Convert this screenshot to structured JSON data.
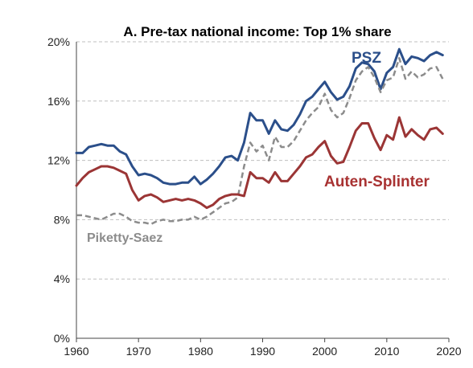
{
  "chart_data": {
    "type": "line",
    "title": "A. Pre-tax national income: Top 1% share",
    "xlabel": "",
    "ylabel": "",
    "xlim": [
      1960,
      2020
    ],
    "ylim": [
      0,
      20
    ],
    "x_ticks": [
      "1960",
      "1970",
      "1980",
      "1990",
      "2000",
      "2010",
      "2020"
    ],
    "y_ticks": [
      "0%",
      "4%",
      "8%",
      "12%",
      "16%",
      "20%"
    ],
    "grid": true,
    "series": [
      {
        "name": "PSZ",
        "color": "#2b4f8a",
        "dash": "solid",
        "label_color": "#2b4f8a",
        "x": [
          1960,
          1961,
          1962,
          1963,
          1964,
          1965,
          1966,
          1967,
          1968,
          1969,
          1970,
          1971,
          1972,
          1973,
          1974,
          1975,
          1976,
          1977,
          1978,
          1979,
          1980,
          1981,
          1982,
          1983,
          1984,
          1985,
          1986,
          1987,
          1988,
          1989,
          1990,
          1991,
          1992,
          1993,
          1994,
          1995,
          1996,
          1997,
          1998,
          1999,
          2000,
          2001,
          2002,
          2003,
          2004,
          2005,
          2006,
          2007,
          2008,
          2009,
          2010,
          2011,
          2012,
          2013,
          2014,
          2015,
          2016,
          2017,
          2018,
          2019
        ],
        "y": [
          12.5,
          12.5,
          12.9,
          13.0,
          13.1,
          13.0,
          13.0,
          12.6,
          12.4,
          11.6,
          11.0,
          11.1,
          11.0,
          10.8,
          10.5,
          10.4,
          10.4,
          10.5,
          10.5,
          10.9,
          10.4,
          10.7,
          11.1,
          11.6,
          12.2,
          12.3,
          12.0,
          13.2,
          15.2,
          14.7,
          14.7,
          13.8,
          14.7,
          14.1,
          14.0,
          14.4,
          15.1,
          16.0,
          16.3,
          16.8,
          17.3,
          16.6,
          16.1,
          16.3,
          17.0,
          18.2,
          18.6,
          18.5,
          18.0,
          16.8,
          17.9,
          18.3,
          19.5,
          18.5,
          19.0,
          18.9,
          18.7,
          19.1,
          19.3,
          19.1
        ]
      },
      {
        "name": "Piketty-Saez",
        "color": "#8c8c8c",
        "dash": "dashed",
        "label_color": "#8c8c8c",
        "x": [
          1960,
          1961,
          1962,
          1963,
          1964,
          1965,
          1966,
          1967,
          1968,
          1969,
          1970,
          1971,
          1972,
          1973,
          1974,
          1975,
          1976,
          1977,
          1978,
          1979,
          1980,
          1981,
          1982,
          1983,
          1984,
          1985,
          1986,
          1987,
          1988,
          1989,
          1990,
          1991,
          1992,
          1993,
          1994,
          1995,
          1996,
          1997,
          1998,
          1999,
          2000,
          2001,
          2002,
          2003,
          2004,
          2005,
          2006,
          2007,
          2008,
          2009,
          2010,
          2011,
          2012,
          2013,
          2014,
          2015,
          2016,
          2017,
          2018,
          2019
        ],
        "y": [
          8.3,
          8.3,
          8.2,
          8.1,
          8.0,
          8.2,
          8.4,
          8.4,
          8.2,
          7.9,
          7.8,
          7.8,
          7.7,
          7.9,
          8.0,
          7.9,
          7.9,
          8.0,
          8.0,
          8.2,
          8.0,
          8.2,
          8.5,
          8.8,
          9.1,
          9.2,
          9.5,
          11.6,
          13.2,
          12.6,
          13.0,
          12.0,
          13.6,
          12.9,
          12.9,
          13.3,
          14.0,
          14.7,
          15.2,
          15.6,
          16.5,
          15.4,
          14.9,
          15.2,
          16.2,
          17.4,
          18.0,
          18.3,
          17.6,
          16.6,
          17.4,
          17.6,
          18.9,
          17.5,
          18.0,
          17.6,
          17.8,
          18.2,
          18.3,
          17.5
        ]
      },
      {
        "name": "Auten-Splinter",
        "color": "#9b3535",
        "dash": "solid",
        "label_color": "#a83232",
        "x": [
          1960,
          1961,
          1962,
          1963,
          1964,
          1965,
          1966,
          1967,
          1968,
          1969,
          1970,
          1971,
          1972,
          1973,
          1974,
          1975,
          1976,
          1977,
          1978,
          1979,
          1980,
          1981,
          1982,
          1983,
          1984,
          1985,
          1986,
          1987,
          1988,
          1989,
          1990,
          1991,
          1992,
          1993,
          1994,
          1995,
          1996,
          1997,
          1998,
          1999,
          2000,
          2001,
          2002,
          2003,
          2004,
          2005,
          2006,
          2007,
          2008,
          2009,
          2010,
          2011,
          2012,
          2013,
          2014,
          2015,
          2016,
          2017,
          2018,
          2019
        ],
        "y": [
          10.3,
          10.8,
          11.2,
          11.4,
          11.6,
          11.6,
          11.5,
          11.3,
          11.1,
          10.0,
          9.3,
          9.6,
          9.7,
          9.5,
          9.2,
          9.3,
          9.4,
          9.3,
          9.4,
          9.3,
          9.1,
          8.8,
          9.0,
          9.4,
          9.6,
          9.7,
          9.7,
          9.6,
          11.2,
          10.8,
          10.8,
          10.5,
          11.2,
          10.6,
          10.6,
          11.1,
          11.6,
          12.2,
          12.4,
          12.9,
          13.3,
          12.3,
          11.8,
          11.9,
          12.9,
          14.0,
          14.5,
          14.5,
          13.5,
          12.7,
          13.7,
          13.4,
          14.9,
          13.6,
          14.1,
          13.7,
          13.4,
          14.1,
          14.2,
          13.8
        ]
      }
    ],
    "annotations": [
      {
        "text": "PSZ",
        "series": "PSZ"
      },
      {
        "text": "Auten-Splinter",
        "series": "Auten-Splinter"
      },
      {
        "text": "Piketty-Saez",
        "series": "Piketty-Saez"
      }
    ]
  }
}
